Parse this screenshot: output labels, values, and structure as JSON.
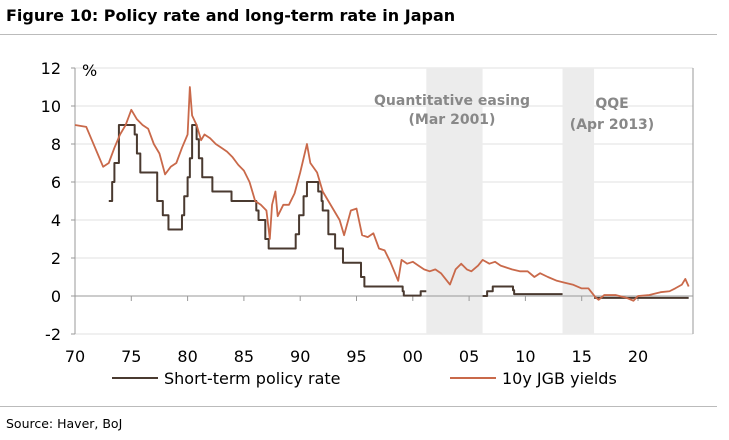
{
  "title": "Figure 10: Policy rate and long-term rate in Japan",
  "source": "Source: Haver, BoJ",
  "chart_data": {
    "type": "line",
    "ylabel": "%",
    "ylim": [
      -2,
      12
    ],
    "xlim": [
      1970,
      2025
    ],
    "yticks": [
      "12",
      "10",
      "8",
      "6",
      "4",
      "2",
      "0",
      "-2"
    ],
    "ytick_values": [
      12,
      10,
      8,
      6,
      4,
      2,
      0,
      -2
    ],
    "xticks": [
      "70",
      "75",
      "80",
      "85",
      "90",
      "95",
      "00",
      "05",
      "10",
      "15",
      "20"
    ],
    "xtick_values": [
      1970,
      1975,
      1980,
      1985,
      1990,
      1995,
      2000,
      2005,
      2010,
      2015,
      2020
    ],
    "grid": true,
    "legend": "bottom",
    "shaded_periods": [
      {
        "label_line1": "Quantitative easing",
        "label_line2": "(Mar 2001)",
        "from": 2001.2,
        "to": 2006.2
      },
      {
        "label_line1": "QQE",
        "label_line2": "(Apr 2013)",
        "from": 2013.3,
        "to": 2016.1
      }
    ],
    "series": [
      {
        "name": "Short-term policy rate",
        "color": "#4a3a30",
        "step": true,
        "segments": [
          [
            [
              1973.0,
              5
            ],
            [
              1973.3,
              6
            ],
            [
              1973.5,
              7
            ],
            [
              1973.9,
              9
            ],
            [
              1975.0,
              9
            ],
            [
              1975.3,
              8.5
            ],
            [
              1975.5,
              7.5
            ],
            [
              1975.8,
              6.5
            ],
            [
              1977.2,
              6.5
            ],
            [
              1977.3,
              5
            ],
            [
              1977.8,
              4.25
            ],
            [
              1978.3,
              3.5
            ],
            [
              1979.3,
              3.5
            ],
            [
              1979.5,
              4.25
            ],
            [
              1979.7,
              5.25
            ],
            [
              1980.0,
              6.25
            ],
            [
              1980.2,
              7.25
            ],
            [
              1980.4,
              9
            ],
            [
              1980.8,
              8.25
            ],
            [
              1981.0,
              7.25
            ],
            [
              1981.3,
              6.25
            ],
            [
              1982.0,
              6.25
            ],
            [
              1982.2,
              5.5
            ],
            [
              1983.8,
              5.5
            ],
            [
              1983.9,
              5
            ],
            [
              1986.0,
              5
            ],
            [
              1986.1,
              4.5
            ],
            [
              1986.3,
              4
            ],
            [
              1986.9,
              3
            ],
            [
              1987.2,
              2.5
            ],
            [
              1989.4,
              2.5
            ],
            [
              1989.6,
              3.25
            ],
            [
              1989.9,
              4.25
            ],
            [
              1990.3,
              5.25
            ],
            [
              1990.6,
              6
            ],
            [
              1991.5,
              6
            ],
            [
              1991.6,
              5.5
            ],
            [
              1991.9,
              5
            ],
            [
              1992.0,
              4.5
            ],
            [
              1992.5,
              3.25
            ],
            [
              1993.1,
              2.5
            ],
            [
              1993.8,
              1.75
            ],
            [
              1995.3,
              1.75
            ],
            [
              1995.4,
              1
            ],
            [
              1995.7,
              0.5
            ],
            [
              1998.8,
              0.5
            ],
            [
              1999.1,
              0.25
            ],
            [
              1999.2,
              0.02
            ],
            [
              2000.6,
              0.02
            ],
            [
              2000.7,
              0.25
            ],
            [
              2001.2,
              0.25
            ]
          ],
          [
            [
              2006.2,
              0
            ],
            [
              2006.6,
              0.25
            ],
            [
              2007.1,
              0.5
            ],
            [
              2008.8,
              0.5
            ],
            [
              2008.9,
              0.3
            ],
            [
              2009.0,
              0.1
            ],
            [
              2013.3,
              0.1
            ]
          ],
          [
            [
              2016.1,
              -0.1
            ],
            [
              2024.5,
              -0.1
            ]
          ]
        ]
      },
      {
        "name": "10y JGB yields",
        "color": "#c9694a",
        "step": false,
        "segments": [
          [
            [
              1970,
              9.0
            ],
            [
              1971,
              8.9
            ],
            [
              1971.5,
              8.2
            ],
            [
              1972,
              7.5
            ],
            [
              1972.5,
              6.8
            ],
            [
              1973,
              7.0
            ],
            [
              1973.5,
              7.8
            ],
            [
              1974,
              8.5
            ],
            [
              1974.5,
              9.0
            ],
            [
              1975.0,
              9.8
            ],
            [
              1975.5,
              9.3
            ],
            [
              1976,
              9.0
            ],
            [
              1976.5,
              8.8
            ],
            [
              1977,
              8.0
            ],
            [
              1977.5,
              7.5
            ],
            [
              1978,
              6.4
            ],
            [
              1978.5,
              6.8
            ],
            [
              1979,
              7.0
            ],
            [
              1979.5,
              7.8
            ],
            [
              1980.0,
              8.5
            ],
            [
              1980.2,
              11.0
            ],
            [
              1980.4,
              9.5
            ],
            [
              1980.8,
              9.0
            ],
            [
              1981.2,
              8.2
            ],
            [
              1981.5,
              8.5
            ],
            [
              1982,
              8.3
            ],
            [
              1982.5,
              8.0
            ],
            [
              1983,
              7.8
            ],
            [
              1983.5,
              7.6
            ],
            [
              1984,
              7.3
            ],
            [
              1984.5,
              6.9
            ],
            [
              1985,
              6.6
            ],
            [
              1985.5,
              6.0
            ],
            [
              1986,
              5.0
            ],
            [
              1986.5,
              4.8
            ],
            [
              1987.0,
              4.5
            ],
            [
              1987.3,
              3.0
            ],
            [
              1987.5,
              4.8
            ],
            [
              1987.8,
              5.5
            ],
            [
              1988,
              4.2
            ],
            [
              1988.5,
              4.8
            ],
            [
              1989,
              4.8
            ],
            [
              1989.5,
              5.4
            ],
            [
              1990,
              6.5
            ],
            [
              1990.6,
              8.0
            ],
            [
              1990.9,
              7.0
            ],
            [
              1991.5,
              6.5
            ],
            [
              1992,
              5.5
            ],
            [
              1992.5,
              5.0
            ],
            [
              1993,
              4.5
            ],
            [
              1993.5,
              4.0
            ],
            [
              1993.9,
              3.2
            ],
            [
              1994.5,
              4.5
            ],
            [
              1995,
              4.6
            ],
            [
              1995.5,
              3.2
            ],
            [
              1996,
              3.1
            ],
            [
              1996.5,
              3.3
            ],
            [
              1997,
              2.5
            ],
            [
              1997.5,
              2.4
            ],
            [
              1998,
              1.8
            ],
            [
              1998.7,
              0.8
            ],
            [
              1999,
              1.9
            ],
            [
              1999.5,
              1.7
            ],
            [
              2000,
              1.8
            ],
            [
              2000.5,
              1.6
            ],
            [
              2001,
              1.4
            ],
            [
              2001.5,
              1.3
            ],
            [
              2002,
              1.4
            ],
            [
              2002.5,
              1.2
            ],
            [
              2003.3,
              0.6
            ],
            [
              2003.8,
              1.4
            ],
            [
              2004.3,
              1.7
            ],
            [
              2004.8,
              1.4
            ],
            [
              2005.2,
              1.3
            ],
            [
              2005.8,
              1.6
            ],
            [
              2006.2,
              1.9
            ],
            [
              2006.8,
              1.7
            ],
            [
              2007.3,
              1.8
            ],
            [
              2007.8,
              1.6
            ],
            [
              2008.3,
              1.5
            ],
            [
              2008.8,
              1.4
            ],
            [
              2009.5,
              1.3
            ],
            [
              2010.2,
              1.3
            ],
            [
              2010.8,
              1.0
            ],
            [
              2011.3,
              1.2
            ],
            [
              2012,
              1.0
            ],
            [
              2012.8,
              0.8
            ],
            [
              2013.5,
              0.7
            ],
            [
              2014.2,
              0.6
            ],
            [
              2015,
              0.4
            ],
            [
              2015.6,
              0.4
            ],
            [
              2016.2,
              -0.05
            ],
            [
              2016.5,
              -0.2
            ],
            [
              2017,
              0.05
            ],
            [
              2018,
              0.05
            ],
            [
              2019,
              -0.1
            ],
            [
              2019.6,
              -0.25
            ],
            [
              2020,
              0.0
            ],
            [
              2021,
              0.05
            ],
            [
              2022,
              0.2
            ],
            [
              2022.8,
              0.25
            ],
            [
              2023.3,
              0.4
            ],
            [
              2023.9,
              0.6
            ],
            [
              2024.2,
              0.9
            ],
            [
              2024.5,
              0.5
            ]
          ]
        ]
      }
    ]
  }
}
